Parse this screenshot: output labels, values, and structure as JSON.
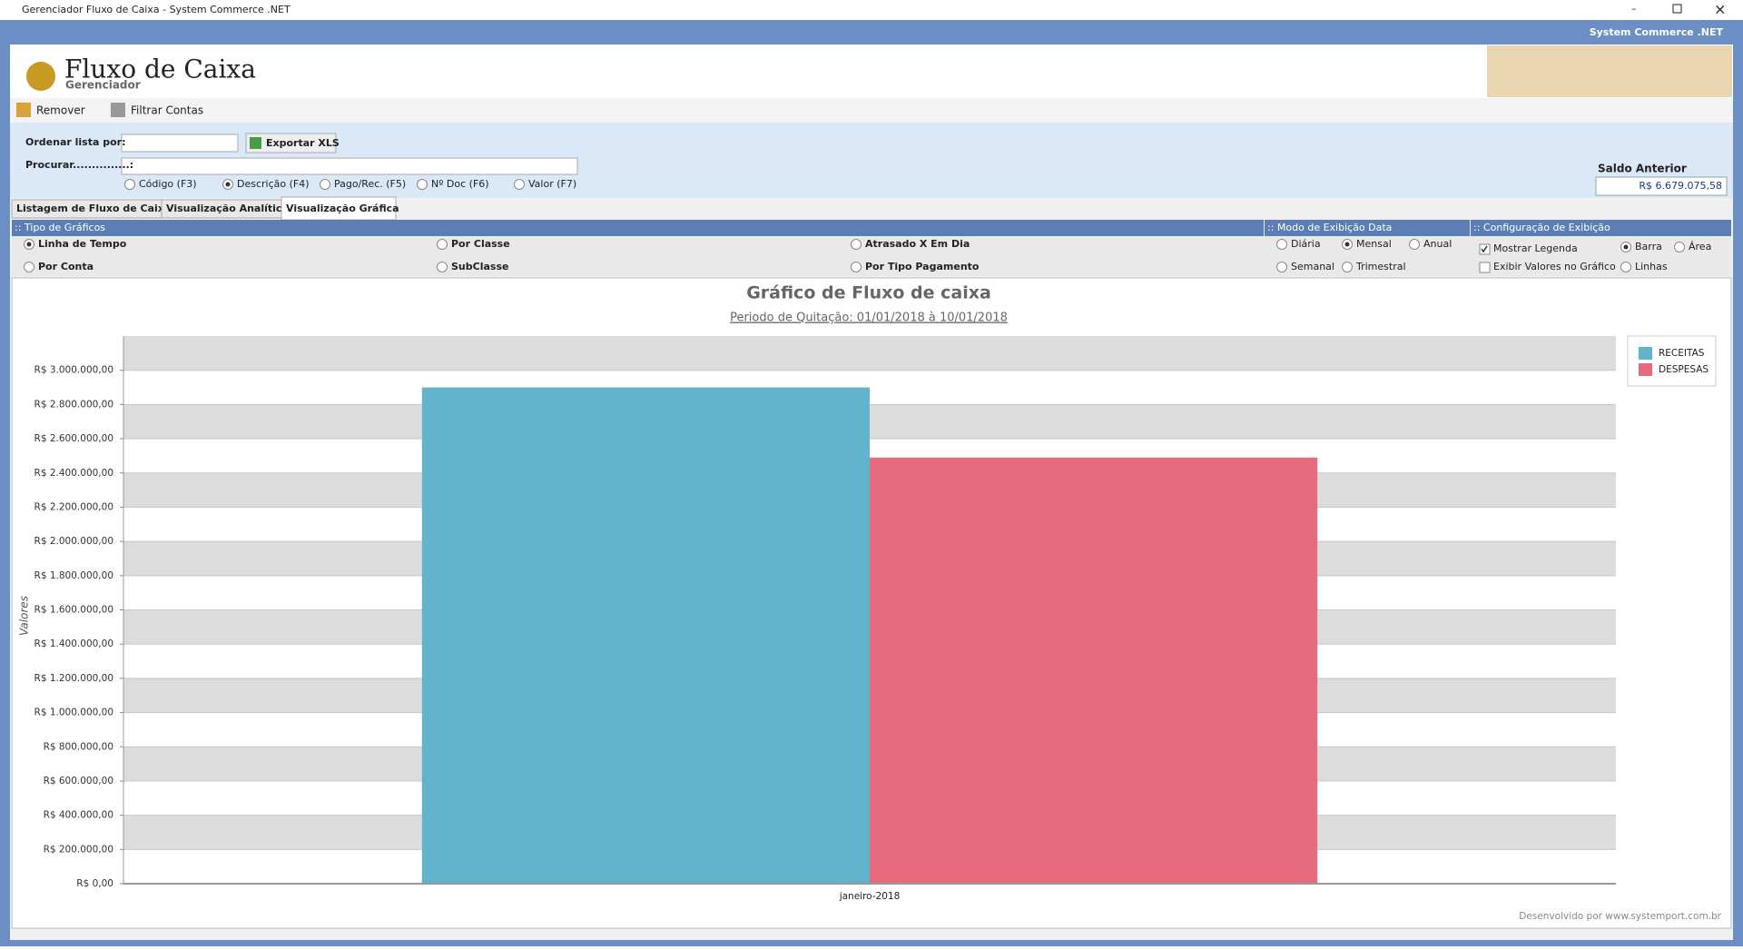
{
  "window": {
    "title": "Gerenciador Fluxo de Caixa -  System Commerce .NET",
    "brand": "System Commerce .NET"
  },
  "header": {
    "title": "Fluxo de Caixa",
    "subtitle": "Gerenciador"
  },
  "toolbar": [
    "Remover",
    "Filtrar Contas"
  ],
  "form": {
    "order_label": "Ordenar  lista por:",
    "export_button": "Exportar XLS",
    "search_label": "Procurar...............:",
    "search_fields": [
      {
        "label": "Código (F3)",
        "selected": false
      },
      {
        "label": "Descrição (F4)",
        "selected": true
      },
      {
        "label": "Pago/Rec. (F5)",
        "selected": false
      },
      {
        "label": "Nº Doc (F6)",
        "selected": false
      },
      {
        "label": "Valor (F7)",
        "selected": false
      }
    ],
    "balance_label": "Saldo Anterior",
    "balance_value": "R$ 6.679.075,58"
  },
  "tabs": [
    {
      "label": "Listagem de Fluxo de Caixa",
      "active": false
    },
    {
      "label": "Visualização Analítica",
      "active": false
    },
    {
      "label": "Visualização Gráfica",
      "active": true
    }
  ],
  "chart_types": {
    "title": ":: Tipo de Gráficos",
    "options": [
      {
        "label": "Linha de Tempo",
        "selected": true
      },
      {
        "label": "Por Classe",
        "selected": false
      },
      {
        "label": "Atrasado X Em Dia",
        "selected": false
      },
      {
        "label": "Por Conta",
        "selected": false
      },
      {
        "label": "SubClasse",
        "selected": false
      },
      {
        "label": "Por Tipo Pagamento",
        "selected": false
      }
    ]
  },
  "date_mode": {
    "title": ":: Modo de Exibição Data",
    "options": [
      {
        "label": "Diária",
        "selected": false
      },
      {
        "label": "Mensal",
        "selected": true
      },
      {
        "label": "Anual",
        "selected": false
      },
      {
        "label": "Semanal",
        "selected": false
      },
      {
        "label": "Trimestral",
        "selected": false
      }
    ]
  },
  "display_config": {
    "title": ":: Configuração de Exibição",
    "checkboxes": [
      {
        "label": "Mostrar Legenda",
        "checked": true
      },
      {
        "label": "Exibir Valores no Gráfico",
        "checked": false
      }
    ],
    "options": [
      {
        "label": "Barra",
        "selected": true
      },
      {
        "label": "Área",
        "selected": false
      },
      {
        "label": "Linhas",
        "selected": false
      }
    ]
  },
  "chart_data": {
    "type": "bar",
    "title": "Gráfico de Fluxo de caixa",
    "subtitle": "Periodo de Quitação: 01/01/2018 à 10/01/2018",
    "y_label": "Valores",
    "categories": [
      "janeiro-2018"
    ],
    "series": [
      {
        "name": "RECEITAS",
        "color": "#62b3cc",
        "values": [
          2900000
        ]
      },
      {
        "name": "DESPESAS",
        "color": "#e66b7c",
        "values": [
          2490000
        ]
      }
    ],
    "ylim": [
      0,
      3200000
    ],
    "yticks": [
      {
        "value": 0,
        "label": "R$ 0,00"
      },
      {
        "value": 200000,
        "label": "R$ 200.000,00"
      },
      {
        "value": 400000,
        "label": "R$ 400.000,00"
      },
      {
        "value": 600000,
        "label": "R$ 600.000,00"
      },
      {
        "value": 800000,
        "label": "R$ 800.000,00"
      },
      {
        "value": 1000000,
        "label": "R$ 1.000.000,00"
      },
      {
        "value": 1200000,
        "label": "R$ 1.200.000,00"
      },
      {
        "value": 1400000,
        "label": "R$ 1.400.000,00"
      },
      {
        "value": 1600000,
        "label": "R$ 1.600.000,00"
      },
      {
        "value": 1800000,
        "label": "R$ 1.800.000,00"
      },
      {
        "value": 2000000,
        "label": "R$ 2.000.000,00"
      },
      {
        "value": 2200000,
        "label": "R$ 2.200.000,00"
      },
      {
        "value": 2400000,
        "label": "R$ 2.400.000,00"
      },
      {
        "value": 2600000,
        "label": "R$ 2.600.000,00"
      },
      {
        "value": 2800000,
        "label": "R$ 2.800.000,00"
      },
      {
        "value": 3000000,
        "label": "R$ 3.000.000,00"
      }
    ],
    "grid": true,
    "legend": "right"
  },
  "footer": "Desenvolvido por www.systemport.com.br"
}
